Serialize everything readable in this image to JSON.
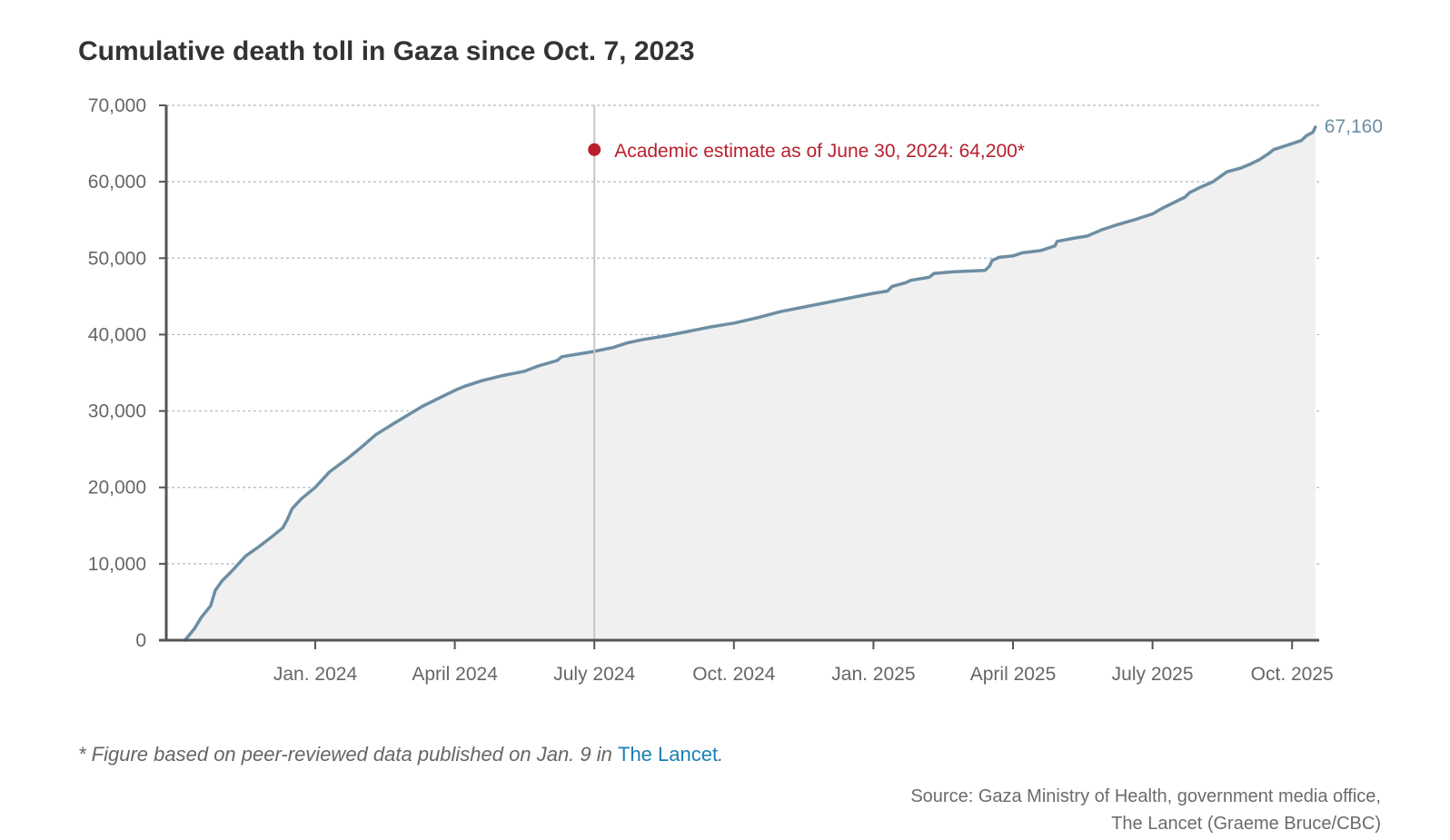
{
  "title": "Cumulative death toll in Gaza since Oct. 7, 2023",
  "chart_data": {
    "type": "area",
    "title": "Cumulative death toll in Gaza since Oct. 7, 2023",
    "xlabel": "",
    "ylabel": "",
    "x_unit": "months since Oct. 1, 2023",
    "ylim": [
      0,
      70000
    ],
    "xlim": [
      0,
      24.5
    ],
    "grid": true,
    "y_ticks": [
      0,
      10000,
      20000,
      30000,
      40000,
      50000,
      60000,
      70000
    ],
    "y_tick_labels": [
      "0",
      "10,000",
      "20,000",
      "30,000",
      "40,000",
      "50,000",
      "60,000",
      "70,000"
    ],
    "x_ticks": [
      {
        "x": 3,
        "label": "Jan. 2024"
      },
      {
        "x": 6,
        "label": "April 2024"
      },
      {
        "x": 9,
        "label": "July 2024"
      },
      {
        "x": 12,
        "label": "Oct. 2024"
      },
      {
        "x": 15,
        "label": "Jan. 2025"
      },
      {
        "x": 18,
        "label": "April 2025"
      },
      {
        "x": 21,
        "label": "July 2025"
      },
      {
        "x": 24,
        "label": "Oct. 2025"
      }
    ],
    "series": [
      {
        "name": "Cumulative deaths",
        "color": "#6d8ea3",
        "points": [
          [
            0.2,
            0
          ],
          [
            0.4,
            1500
          ],
          [
            0.55,
            3000
          ],
          [
            0.75,
            4500
          ],
          [
            0.85,
            6500
          ],
          [
            1.0,
            7800
          ],
          [
            1.2,
            9000
          ],
          [
            1.5,
            11000
          ],
          [
            1.8,
            12300
          ],
          [
            2.1,
            13700
          ],
          [
            2.3,
            14700
          ],
          [
            2.4,
            15800
          ],
          [
            2.5,
            17200
          ],
          [
            2.7,
            18500
          ],
          [
            3.0,
            20000
          ],
          [
            3.3,
            22000
          ],
          [
            3.7,
            23800
          ],
          [
            4.0,
            25300
          ],
          [
            4.3,
            26900
          ],
          [
            4.7,
            28400
          ],
          [
            5.0,
            29500
          ],
          [
            5.3,
            30600
          ],
          [
            5.7,
            31800
          ],
          [
            6.0,
            32700
          ],
          [
            6.2,
            33200
          ],
          [
            6.6,
            34000
          ],
          [
            7.0,
            34600
          ],
          [
            7.5,
            35200
          ],
          [
            7.8,
            35900
          ],
          [
            8.2,
            36600
          ],
          [
            8.3,
            37100
          ],
          [
            8.7,
            37500
          ],
          [
            9.0,
            37800
          ],
          [
            9.4,
            38300
          ],
          [
            9.7,
            38900
          ],
          [
            10.0,
            39300
          ],
          [
            10.5,
            39800
          ],
          [
            11.0,
            40400
          ],
          [
            11.5,
            41000
          ],
          [
            12.0,
            41500
          ],
          [
            12.5,
            42200
          ],
          [
            13.0,
            43000
          ],
          [
            13.5,
            43600
          ],
          [
            14.0,
            44200
          ],
          [
            14.5,
            44800
          ],
          [
            15.0,
            45400
          ],
          [
            15.3,
            45700
          ],
          [
            15.4,
            46300
          ],
          [
            15.7,
            46800
          ],
          [
            15.8,
            47100
          ],
          [
            16.2,
            47500
          ],
          [
            16.3,
            48000
          ],
          [
            16.7,
            48200
          ],
          [
            17.0,
            48300
          ],
          [
            17.4,
            48400
          ],
          [
            17.5,
            49000
          ],
          [
            17.55,
            49700
          ],
          [
            17.7,
            50100
          ],
          [
            18.0,
            50300
          ],
          [
            18.2,
            50700
          ],
          [
            18.6,
            51000
          ],
          [
            18.9,
            51600
          ],
          [
            18.95,
            52200
          ],
          [
            19.3,
            52600
          ],
          [
            19.6,
            52900
          ],
          [
            19.9,
            53700
          ],
          [
            20.2,
            54300
          ],
          [
            20.6,
            55000
          ],
          [
            21.0,
            55800
          ],
          [
            21.2,
            56500
          ],
          [
            21.5,
            57400
          ],
          [
            21.7,
            58000
          ],
          [
            21.8,
            58600
          ],
          [
            22.0,
            59200
          ],
          [
            22.3,
            60000
          ],
          [
            22.6,
            61300
          ],
          [
            22.9,
            61800
          ],
          [
            23.1,
            62300
          ],
          [
            23.3,
            62900
          ],
          [
            23.5,
            63700
          ],
          [
            23.6,
            64200
          ],
          [
            23.9,
            64800
          ],
          [
            24.2,
            65400
          ],
          [
            24.3,
            66000
          ],
          [
            24.45,
            66500
          ],
          [
            24.5,
            67160
          ]
        ]
      }
    ],
    "end_label": "67,160",
    "reference_line": {
      "x": 9.0
    },
    "annotation": {
      "x": 9.0,
      "y": 64200,
      "text": "Academic estimate as of June 30, 2024: 64,200*",
      "color": "#b81f2d"
    },
    "colors": {
      "area_fill": "#f0f0f0",
      "line": "#6d8ea3",
      "grid": "#a9bcc6",
      "axis": "#555555",
      "ref_line": "#c6c6c6"
    }
  },
  "footnote": {
    "text": "* Figure based on peer-reviewed data published on Jan. 9 in ",
    "link": "The Lancet",
    "end": "."
  },
  "source": {
    "line1": "Source: Gaza Ministry of Health, government media office,",
    "line2": "The Lancet (Graeme Bruce/CBC)"
  }
}
